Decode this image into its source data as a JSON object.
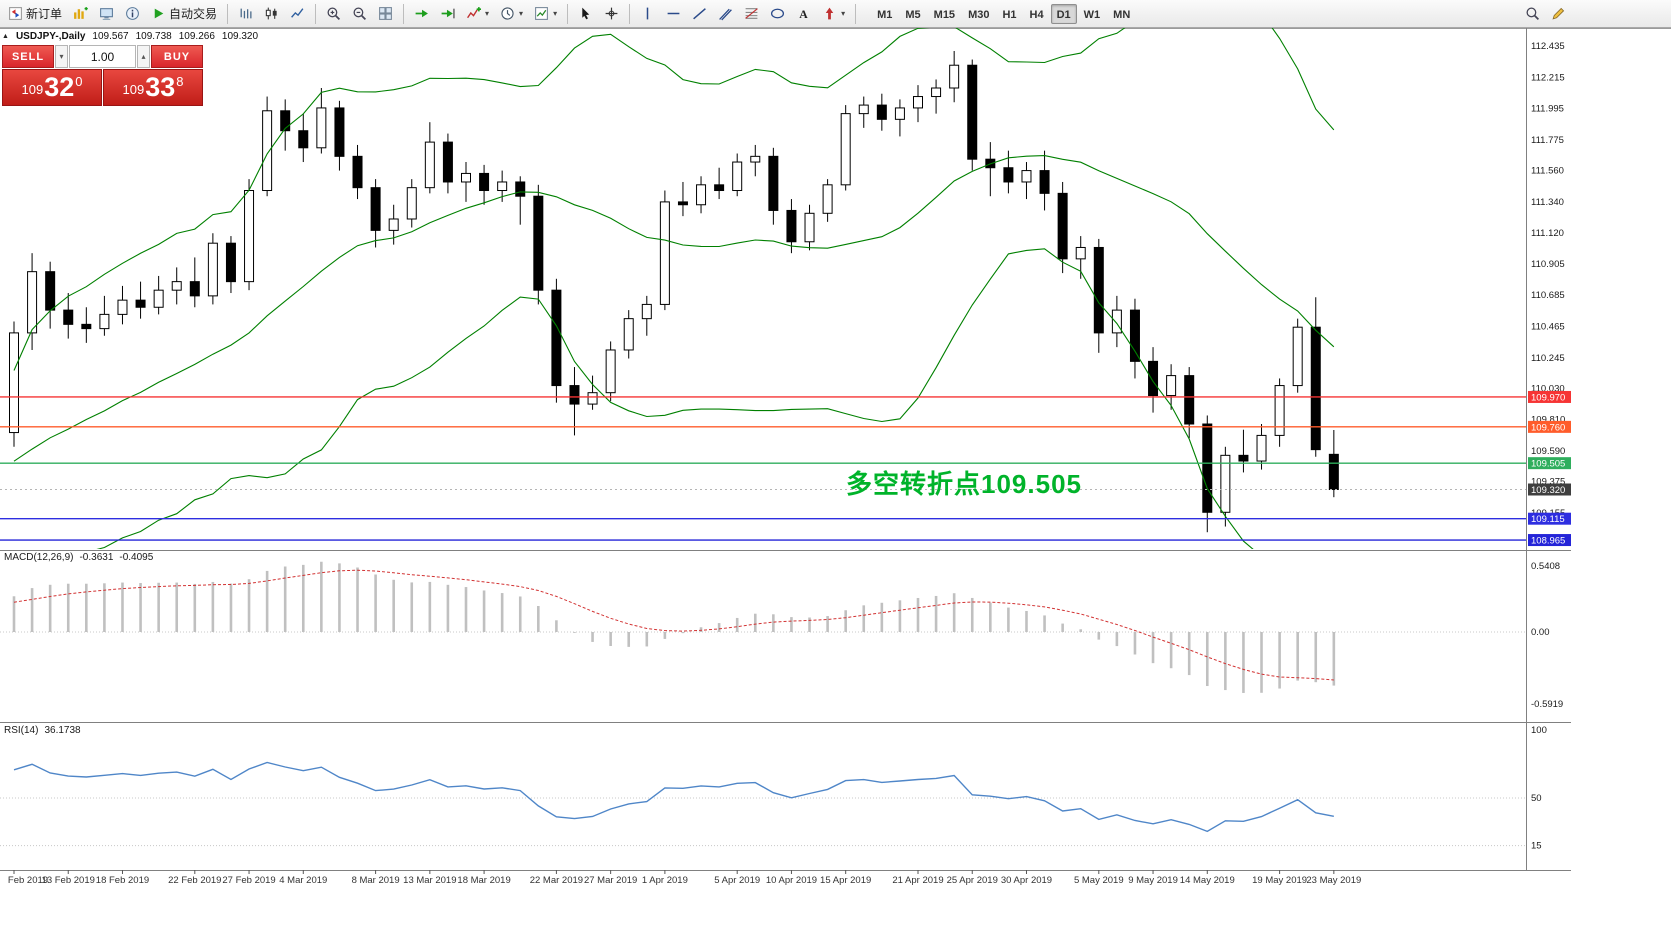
{
  "toolbar": {
    "items": [
      {
        "name": "new-order-button",
        "icon": "new-order",
        "label": "新订单"
      },
      {
        "name": "charts-menu-button",
        "icon": "chart-plus"
      },
      {
        "name": "profiles-button",
        "icon": "profiles"
      },
      {
        "name": "data-window-button",
        "icon": "data-window"
      },
      {
        "name": "autotrading-button",
        "icon": "play",
        "label": "自动交易"
      },
      {
        "sep": true
      },
      {
        "name": "bar-chart-button",
        "icon": "bars"
      },
      {
        "name": "candlestick-chart-button",
        "icon": "candles"
      },
      {
        "name": "line-chart-button",
        "icon": "line-chart"
      },
      {
        "sep": true
      },
      {
        "name": "zoom-in-button",
        "icon": "zoom-in"
      },
      {
        "name": "zoom-out-button",
        "icon": "zoom-out"
      },
      {
        "name": "tile-windows-button",
        "icon": "tile"
      },
      {
        "sep": true
      },
      {
        "name": "auto-scroll-button",
        "icon": "auto-scroll"
      },
      {
        "name": "chart-shift-button",
        "icon": "chart-shift"
      },
      {
        "name": "indicators-button",
        "icon": "indicators",
        "caret": true
      },
      {
        "name": "periods-button",
        "icon": "clock",
        "caret": true
      },
      {
        "name": "templates-button",
        "icon": "template",
        "caret": true
      },
      {
        "sep": true
      },
      {
        "name": "cursor-button",
        "icon": "cursor"
      },
      {
        "name": "crosshair-button",
        "icon": "crosshair"
      },
      {
        "sep": true
      },
      {
        "name": "vertical-line-button",
        "icon": "vline"
      },
      {
        "name": "horizontal-line-button",
        "icon": "hline"
      },
      {
        "name": "trendline-button",
        "icon": "trend"
      },
      {
        "name": "equidistant-channel-button",
        "icon": "channel"
      },
      {
        "name": "fibonacci-button",
        "icon": "fibo"
      },
      {
        "name": "shapes-button",
        "icon": "shapes"
      },
      {
        "name": "text-label-button",
        "icon": "text"
      },
      {
        "name": "arrows-button",
        "icon": "arrow",
        "caret": true
      },
      {
        "sep": true
      }
    ],
    "right_items": [
      {
        "name": "search-button",
        "icon": "search"
      },
      {
        "name": "edit-button",
        "icon": "edit"
      }
    ],
    "timeframes": [
      "M1",
      "M5",
      "M15",
      "M30",
      "H1",
      "H4",
      "D1",
      "W1",
      "MN"
    ],
    "active_timeframe": "D1"
  },
  "icons": {
    "collapse_glyph": "▲",
    "caret_down": "▾",
    "caret_up": "▴"
  },
  "chart_header": {
    "symbol_period": "USDJPY-,Daily",
    "open": "109.567",
    "high": "109.738",
    "low": "109.266",
    "close": "109.320"
  },
  "trade_panel": {
    "sell_label": "SELL",
    "buy_label": "BUY",
    "volume": "1.00",
    "sell_price_prefix": "109",
    "sell_price_big": "32",
    "sell_price_sup": "0",
    "buy_price_prefix": "109",
    "buy_price_big": "33",
    "buy_price_sup": "8",
    "panel_color": "#d9262c"
  },
  "annotation": {
    "text": "多空转折点109.505",
    "color": "#00b32a"
  },
  "hlines": [
    {
      "label": "109.970",
      "price": 109.97,
      "color": "#f63434"
    },
    {
      "label": "109.760",
      "price": 109.76,
      "color": "#ff5c2b"
    },
    {
      "label": "109.505",
      "price": 109.505,
      "color": "#2fae5d"
    },
    {
      "label": "109.115",
      "price": 109.115,
      "color": "#2e2ee0"
    },
    {
      "label": "108.965",
      "price": 108.965,
      "color": "#2424d8"
    }
  ],
  "bid_label": {
    "label": "109.320",
    "price": 109.32,
    "color": "#3f3f3f"
  },
  "price_axis": {
    "ticks": [
      "112.435",
      "112.215",
      "111.995",
      "111.775",
      "111.560",
      "111.340",
      "111.120",
      "110.905",
      "110.685",
      "110.465",
      "110.245",
      "110.030",
      "109.810",
      "109.590",
      "109.375",
      "109.155"
    ]
  },
  "macd": {
    "name": "MACD(12,26,9)",
    "main_value": "-0.3631",
    "signal_value": "-0.4095",
    "scale": [
      {
        "label": "0.5408",
        "v": 0.5408
      },
      {
        "label": "0.00",
        "v": 0
      },
      {
        "label": "-0.5919",
        "v": -0.5919
      }
    ],
    "histogram_color": "#c0c0c0",
    "signal_color": "#d23333"
  },
  "rsi": {
    "name": "RSI(14)",
    "value": "36.1738",
    "scale": [
      {
        "label": "100",
        "v": 100
      },
      {
        "label": "50",
        "v": 50
      },
      {
        "label": "15",
        "v": 15
      }
    ],
    "line_color": "#4f86c8"
  },
  "chart_data": {
    "type": "candlestick",
    "symbol": "USDJPY-",
    "timeframe": "Daily",
    "up_color": "#ffffff",
    "down_color": "#000000",
    "outline_color": "#000000",
    "band_color": "#008000",
    "bollinger": {
      "period": 20,
      "deviation": 2
    },
    "candles": [
      [
        109.72,
        110.5,
        109.62,
        110.42
      ],
      [
        110.42,
        110.98,
        110.3,
        110.85
      ],
      [
        110.85,
        110.92,
        110.45,
        110.58
      ],
      [
        110.58,
        110.7,
        110.38,
        110.48
      ],
      [
        110.48,
        110.6,
        110.35,
        110.45
      ],
      [
        110.45,
        110.68,
        110.4,
        110.55
      ],
      [
        110.55,
        110.75,
        110.48,
        110.65
      ],
      [
        110.65,
        110.78,
        110.52,
        110.6
      ],
      [
        110.6,
        110.82,
        110.55,
        110.72
      ],
      [
        110.72,
        110.88,
        110.62,
        110.78
      ],
      [
        110.78,
        110.95,
        110.6,
        110.68
      ],
      [
        110.68,
        111.12,
        110.62,
        111.05
      ],
      [
        111.05,
        111.1,
        110.7,
        110.78
      ],
      [
        110.78,
        111.5,
        110.72,
        111.42
      ],
      [
        111.42,
        112.08,
        111.38,
        111.98
      ],
      [
        111.98,
        112.06,
        111.7,
        111.84
      ],
      [
        111.84,
        111.96,
        111.62,
        111.72
      ],
      [
        111.72,
        112.14,
        111.68,
        112.0
      ],
      [
        112.0,
        112.05,
        111.56,
        111.66
      ],
      [
        111.66,
        111.74,
        111.36,
        111.44
      ],
      [
        111.44,
        111.5,
        111.02,
        111.14
      ],
      [
        111.14,
        111.32,
        111.04,
        111.22
      ],
      [
        111.22,
        111.5,
        111.16,
        111.44
      ],
      [
        111.44,
        111.9,
        111.4,
        111.76
      ],
      [
        111.76,
        111.82,
        111.4,
        111.48
      ],
      [
        111.48,
        111.62,
        111.34,
        111.54
      ],
      [
        111.54,
        111.6,
        111.32,
        111.42
      ],
      [
        111.42,
        111.56,
        111.34,
        111.48
      ],
      [
        111.48,
        111.52,
        111.18,
        111.38
      ],
      [
        111.38,
        111.46,
        110.62,
        110.72
      ],
      [
        110.72,
        110.8,
        109.93,
        110.05
      ],
      [
        110.05,
        110.18,
        109.7,
        109.92
      ],
      [
        109.92,
        110.12,
        109.88,
        110.0
      ],
      [
        110.0,
        110.36,
        109.94,
        110.3
      ],
      [
        110.3,
        110.58,
        110.24,
        110.52
      ],
      [
        110.52,
        110.68,
        110.4,
        110.62
      ],
      [
        110.62,
        111.42,
        110.58,
        111.34
      ],
      [
        111.34,
        111.48,
        111.24,
        111.32
      ],
      [
        111.32,
        111.52,
        111.26,
        111.46
      ],
      [
        111.46,
        111.58,
        111.36,
        111.42
      ],
      [
        111.42,
        111.68,
        111.38,
        111.62
      ],
      [
        111.62,
        111.74,
        111.52,
        111.66
      ],
      [
        111.66,
        111.72,
        111.18,
        111.28
      ],
      [
        111.28,
        111.36,
        110.98,
        111.06
      ],
      [
        111.06,
        111.32,
        111.0,
        111.26
      ],
      [
        111.26,
        111.5,
        111.2,
        111.46
      ],
      [
        111.46,
        112.02,
        111.42,
        111.96
      ],
      [
        111.96,
        112.08,
        111.86,
        112.02
      ],
      [
        112.02,
        112.1,
        111.84,
        111.92
      ],
      [
        111.92,
        112.06,
        111.8,
        112.0
      ],
      [
        112.0,
        112.16,
        111.9,
        112.08
      ],
      [
        112.08,
        112.2,
        111.96,
        112.14
      ],
      [
        112.14,
        112.4,
        112.04,
        112.3
      ],
      [
        112.3,
        112.34,
        111.56,
        111.64
      ],
      [
        111.64,
        111.76,
        111.38,
        111.58
      ],
      [
        111.58,
        111.7,
        111.4,
        111.48
      ],
      [
        111.48,
        111.62,
        111.36,
        111.56
      ],
      [
        111.56,
        111.7,
        111.28,
        111.4
      ],
      [
        111.4,
        111.48,
        110.84,
        110.94
      ],
      [
        110.94,
        111.1,
        110.8,
        111.02
      ],
      [
        111.02,
        111.08,
        110.28,
        110.42
      ],
      [
        110.42,
        110.68,
        110.32,
        110.58
      ],
      [
        110.58,
        110.66,
        110.1,
        110.22
      ],
      [
        110.22,
        110.32,
        109.86,
        109.98
      ],
      [
        109.98,
        110.2,
        109.88,
        110.12
      ],
      [
        110.12,
        110.18,
        109.68,
        109.78
      ],
      [
        109.78,
        109.84,
        109.02,
        109.16
      ],
      [
        109.16,
        109.62,
        109.06,
        109.56
      ],
      [
        109.56,
        109.74,
        109.44,
        109.52
      ],
      [
        109.52,
        109.78,
        109.46,
        109.7
      ],
      [
        109.7,
        110.1,
        109.62,
        110.05
      ],
      [
        110.05,
        110.52,
        110.0,
        110.46
      ],
      [
        110.46,
        110.67,
        109.55,
        109.6
      ],
      [
        109.567,
        109.738,
        109.266,
        109.32
      ]
    ],
    "warmup_closes": [
      108.6,
      108.85,
      108.7,
      108.95,
      108.8,
      109.05,
      108.9,
      109.15,
      109.0,
      109.25,
      109.1,
      109.35,
      109.2,
      109.45,
      109.3,
      109.55,
      109.4,
      109.62,
      109.5,
      109.7,
      109.58,
      109.78,
      109.66,
      109.85,
      109.72,
      109.8
    ],
    "date_labels": [
      {
        "i": 0,
        "t": "Feb 2019"
      },
      {
        "i": 3,
        "t": "13 Feb 2019"
      },
      {
        "i": 6,
        "t": "18 Feb 2019"
      },
      {
        "i": 10,
        "t": "22 Feb 2019"
      },
      {
        "i": 13,
        "t": "27 Feb 2019"
      },
      {
        "i": 16,
        "t": "4 Mar 2019"
      },
      {
        "i": 20,
        "t": "8 Mar 2019"
      },
      {
        "i": 23,
        "t": "13 Mar 2019"
      },
      {
        "i": 26,
        "t": "18 Mar 2019"
      },
      {
        "i": 30,
        "t": "22 Mar 2019"
      },
      {
        "i": 33,
        "t": "27 Mar 2019"
      },
      {
        "i": 36,
        "t": "1 Apr 2019"
      },
      {
        "i": 40,
        "t": "5 Apr 2019"
      },
      {
        "i": 43,
        "t": "10 Apr 2019"
      },
      {
        "i": 46,
        "t": "15 Apr 2019"
      },
      {
        "i": 50,
        "t": "21 Apr 2019"
      },
      {
        "i": 53,
        "t": "25 Apr 2019"
      },
      {
        "i": 56,
        "t": "30 Apr 2019"
      },
      {
        "i": 60,
        "t": "5 May 2019"
      },
      {
        "i": 63,
        "t": "9 May 2019"
      },
      {
        "i": 66,
        "t": "14 May 2019"
      },
      {
        "i": 70,
        "t": "19 May 2019"
      },
      {
        "i": 73,
        "t": "23 May 2019"
      }
    ]
  }
}
